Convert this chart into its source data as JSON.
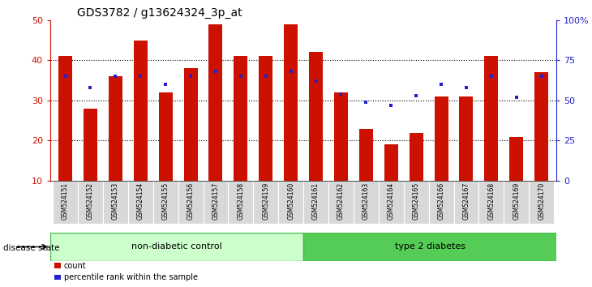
{
  "title": "GDS3782 / g13624324_3p_at",
  "samples": [
    "GSM524151",
    "GSM524152",
    "GSM524153",
    "GSM524154",
    "GSM524155",
    "GSM524156",
    "GSM524157",
    "GSM524158",
    "GSM524159",
    "GSM524160",
    "GSM524161",
    "GSM524162",
    "GSM524163",
    "GSM524164",
    "GSM524165",
    "GSM524166",
    "GSM524167",
    "GSM524168",
    "GSM524169",
    "GSM524170"
  ],
  "counts": [
    41,
    28,
    36,
    45,
    32,
    38,
    49,
    41,
    41,
    49,
    42,
    32,
    23,
    19,
    22,
    31,
    31,
    41,
    21,
    37
  ],
  "percentile_ranks": [
    65,
    58,
    65,
    65,
    60,
    65,
    68,
    65,
    65,
    68,
    62,
    54,
    49,
    47,
    53,
    60,
    58,
    65,
    52,
    65
  ],
  "bar_color": "#cc1100",
  "dot_color": "#2222cc",
  "non_diabetic_count": 10,
  "type2_count": 10,
  "non_diabetic_label": "non-diabetic control",
  "type2_label": "type 2 diabetes",
  "disease_state_label": "disease state",
  "legend_count": "count",
  "legend_pct": "percentile rank within the sample",
  "ymin": 10,
  "ymax": 50,
  "yticks_left": [
    10,
    20,
    30,
    40,
    50
  ],
  "yticks_right": [
    0,
    25,
    50,
    75,
    100
  ],
  "grid_lines": [
    20,
    30,
    40
  ],
  "non_diabetic_color": "#ccffcc",
  "type2_color": "#55cc55",
  "sample_bg_color": "#d8d8d8",
  "title_fontsize": 10,
  "bar_width": 0.55
}
